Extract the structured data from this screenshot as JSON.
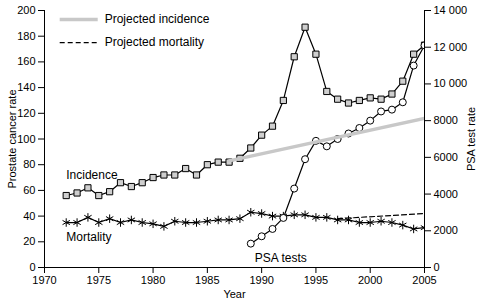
{
  "chart_data": {
    "type": "line",
    "x_label": "Year",
    "y_label": "Prostate cancer rate",
    "y2_label": "PSA test rate",
    "xlim": [
      1970,
      2005
    ],
    "xticks": [
      1970,
      1975,
      1980,
      1985,
      1990,
      1995,
      2000,
      2005
    ],
    "ylim": [
      0,
      200
    ],
    "yticks": [
      0,
      20,
      40,
      60,
      80,
      100,
      120,
      140,
      160,
      180,
      200
    ],
    "y2lim": [
      0,
      14000
    ],
    "y2ticks": [
      0,
      2000,
      4000,
      6000,
      8000,
      {
        "value": 10000,
        "label": "10 000"
      },
      {
        "value": 12000,
        "label": "12 000"
      },
      {
        "value": 14000,
        "label": "14 000"
      }
    ],
    "grid": false,
    "legend": "top-left",
    "series": [
      {
        "name": "Incidence",
        "color": "#000000",
        "marker": "square",
        "line_style": "solid",
        "x": [
          1972,
          1973,
          1974,
          1975,
          1976,
          1977,
          1978,
          1979,
          1980,
          1981,
          1982,
          1983,
          1984,
          1985,
          1986,
          1987,
          1988,
          1989,
          1990,
          1991,
          1992,
          1993,
          1994,
          1995,
          1996,
          1997,
          1998,
          1999,
          2000,
          2001,
          2002,
          2003,
          2004,
          2005
        ],
        "values": [
          56,
          58,
          62,
          56,
          59,
          66,
          63,
          66,
          70,
          72,
          72,
          77,
          72,
          80,
          82,
          82,
          85,
          93,
          103,
          110,
          130,
          164,
          187,
          166,
          137,
          131,
          128,
          130,
          132,
          131,
          135,
          145,
          166,
          173
        ]
      },
      {
        "name": "Mortality",
        "color": "#000000",
        "marker": "asterisk",
        "line_style": "solid",
        "x": [
          1972,
          1973,
          1974,
          1975,
          1976,
          1977,
          1978,
          1979,
          1980,
          1981,
          1982,
          1983,
          1984,
          1985,
          1986,
          1987,
          1988,
          1989,
          1990,
          1991,
          1992,
          1993,
          1994,
          1995,
          1996,
          1997,
          1998,
          1999,
          2000,
          2001,
          2002,
          2003,
          2004,
          2005
        ],
        "values": [
          35,
          35,
          39,
          35,
          38,
          35,
          37,
          35,
          34,
          32,
          36,
          35,
          35,
          36,
          37,
          37,
          38,
          43,
          42,
          40,
          40,
          41,
          41,
          39,
          39,
          37,
          37,
          35,
          35,
          36,
          35,
          33,
          30,
          31
        ]
      },
      {
        "name": "PSA tests",
        "color": "#000000",
        "marker": "circle",
        "line_style": "solid",
        "axis": "y2",
        "x": [
          1989,
          1990,
          1991,
          1992,
          1993,
          1994,
          1995,
          1996,
          1997,
          1998,
          1999,
          2000,
          2001,
          2002,
          2003,
          2004,
          2005
        ],
        "values": [
          1300,
          1700,
          2100,
          2700,
          4300,
          5900,
          6900,
          6600,
          7000,
          7300,
          7600,
          8000,
          8500,
          8600,
          9000,
          11000,
          12100
        ]
      },
      {
        "name": "Projected incidence",
        "color": "#c8c8c8",
        "line_style": "solid",
        "x": [
          1987,
          2005
        ],
        "values": [
          83,
          116
        ]
      },
      {
        "name": "Projected mortality",
        "color": "#000000",
        "line_style": "dashed",
        "x": [
          1997,
          2005
        ],
        "values": [
          38,
          42
        ]
      }
    ]
  }
}
